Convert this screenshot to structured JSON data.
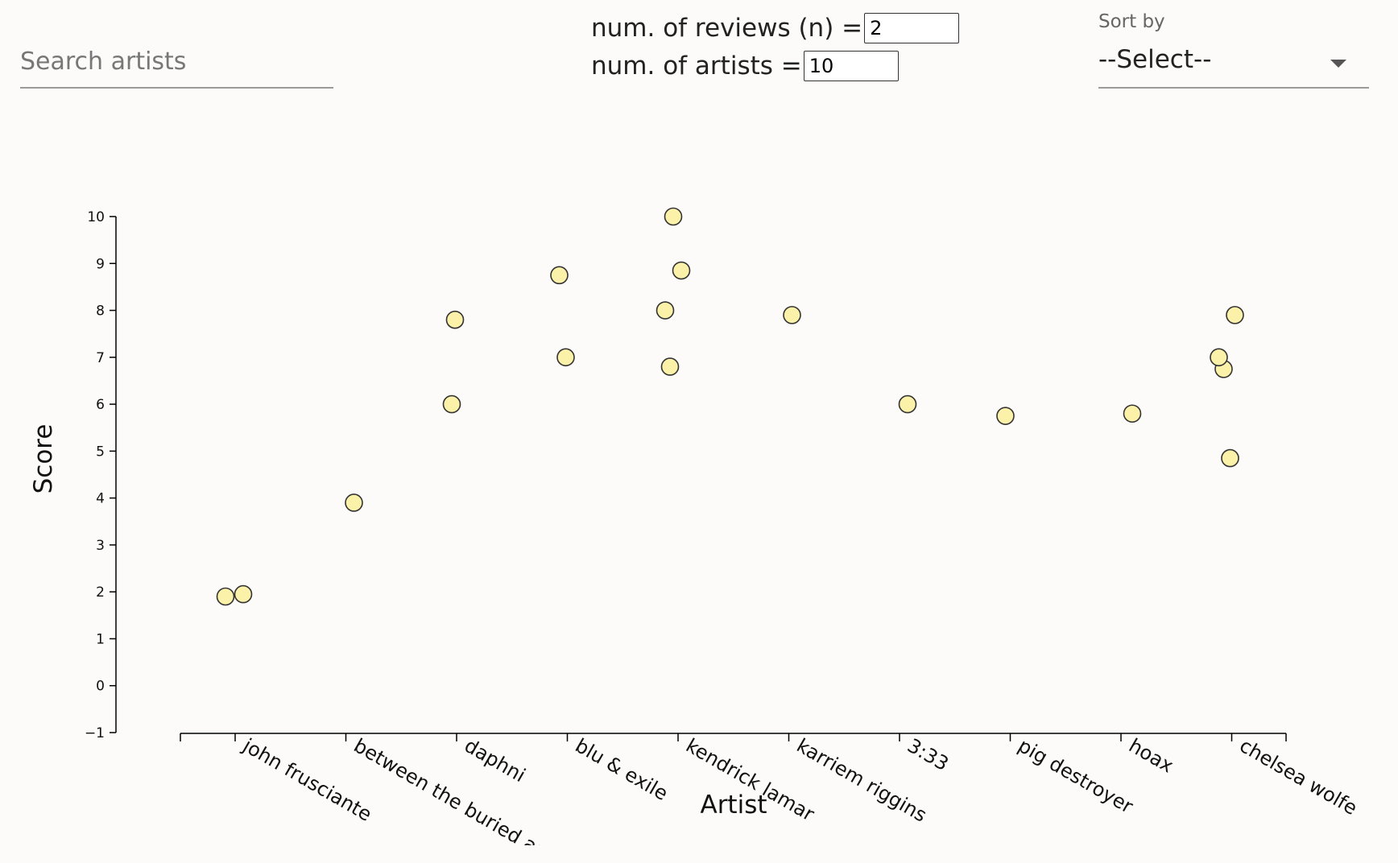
{
  "search": {
    "placeholder": "Search artists",
    "value": ""
  },
  "params": {
    "reviews_label": "num. of reviews (n) =",
    "reviews_value": "2",
    "artists_label": "num. of artists =",
    "artists_value": "10"
  },
  "sort": {
    "label": "Sort by",
    "value": "--Select--"
  },
  "colors": {
    "point_fill": "#fcf1a8",
    "point_stroke": "#333333",
    "background": "#fcfbf9"
  },
  "chart_data": {
    "type": "scatter",
    "xlabel": "Artist",
    "ylabel": "Score",
    "ylim": [
      -1,
      10
    ],
    "yticks": [
      -1,
      0,
      1,
      2,
      3,
      4,
      5,
      6,
      7,
      8,
      9,
      10
    ],
    "categories": [
      "john frusciante",
      "between the buried and",
      "daphni",
      "blu & exile",
      "kendrick lamar",
      "karriem riggins",
      "3:33",
      "pig destroyer",
      "hoax",
      "chelsea wolfe"
    ],
    "points": [
      {
        "artist": "john frusciante",
        "score": 1.9
      },
      {
        "artist": "john frusciante",
        "score": 1.95
      },
      {
        "artist": "between the buried and",
        "score": 3.9
      },
      {
        "artist": "daphni",
        "score": 6.0
      },
      {
        "artist": "daphni",
        "score": 7.8
      },
      {
        "artist": "blu & exile",
        "score": 7.0
      },
      {
        "artist": "blu & exile",
        "score": 8.75
      },
      {
        "artist": "kendrick lamar",
        "score": 6.8
      },
      {
        "artist": "kendrick lamar",
        "score": 8.0
      },
      {
        "artist": "kendrick lamar",
        "score": 8.85
      },
      {
        "artist": "kendrick lamar",
        "score": 10.0
      },
      {
        "artist": "karriem riggins",
        "score": 7.9
      },
      {
        "artist": "3:33",
        "score": 6.0
      },
      {
        "artist": "pig destroyer",
        "score": 5.75
      },
      {
        "artist": "hoax",
        "score": 5.8
      },
      {
        "artist": "chelsea wolfe",
        "score": 4.85
      },
      {
        "artist": "chelsea wolfe",
        "score": 6.75
      },
      {
        "artist": "chelsea wolfe",
        "score": 7.0
      },
      {
        "artist": "chelsea wolfe",
        "score": 7.9
      }
    ]
  }
}
